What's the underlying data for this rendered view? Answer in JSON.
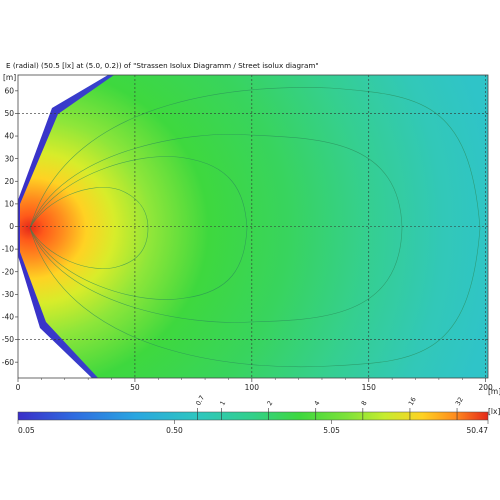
{
  "title": "E (radial) (50.5 [lx] at (5.0, 0.2)) of \"Strassen Isolux Diagramm / Street isolux diagram\"",
  "chart_data": {
    "type": "heatmap",
    "title": "E (radial) (50.5 [lx] at (5.0, 0.2)) of \"Strassen Isolux Diagramm / Street isolux diagram\"",
    "x_unit": "[m]",
    "y_unit": "[m]",
    "xlim": [
      0,
      201
    ],
    "ylim": [
      -67,
      67
    ],
    "x_ticks": [
      0,
      50,
      100,
      150,
      200
    ],
    "y_ticks": [
      60,
      50,
      40,
      30,
      20,
      10,
      0,
      -10,
      -20,
      -30,
      -40,
      -50,
      -60
    ],
    "grid_dashed_x": [
      50,
      100,
      150,
      200
    ],
    "grid_dashed_y": [
      50,
      0,
      -50
    ],
    "peak": {
      "x": 5.0,
      "y": 0.2,
      "value": 50.5,
      "unit": "[lx]"
    },
    "colorbar": {
      "unit": "[lx]",
      "scale": "log",
      "min": 0.05,
      "max": 50.47,
      "bottom_labels": [
        "0.05",
        "0.50",
        "5.05",
        "50.47"
      ],
      "contour_labels": [
        "0.7",
        "1",
        "2",
        "4",
        "8",
        "16",
        "32"
      ]
    }
  }
}
